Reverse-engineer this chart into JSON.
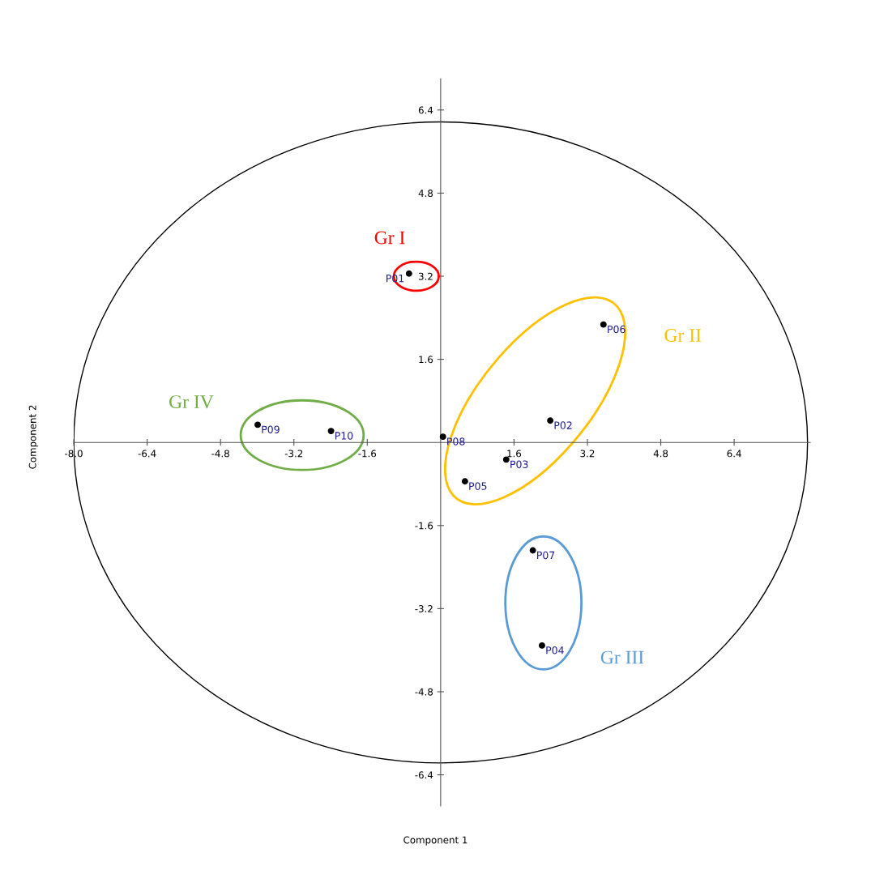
{
  "chart_data": {
    "type": "scatter",
    "xlabel": "Component 1",
    "ylabel": "Component 2",
    "xlim": [
      -8.0,
      8.06
    ],
    "ylim": [
      -7.0,
      7.0
    ],
    "xticks": [
      {
        "value": -8.0,
        "label": "-8.0"
      },
      -6.4,
      -4.8,
      -3.2,
      -1.6,
      1.6,
      3.2,
      4.8,
      6.4
    ],
    "yticks": [
      -6.4,
      -4.8,
      -3.2,
      -1.6,
      1.6,
      3.2,
      4.8,
      6.4
    ],
    "marker": "circle",
    "series": [
      {
        "color": "#000000",
        "x": [
          -0.69,
          2.39,
          1.43,
          2.21,
          0.53,
          3.55,
          2.01,
          0.05,
          -3.99,
          -2.39
        ],
        "values": [
          3.25,
          0.42,
          -0.33,
          -3.91,
          -0.75,
          2.27,
          -2.08,
          0.11,
          0.34,
          0.22
        ]
      }
    ],
    "annotations": [
      {
        "text": "P01",
        "x": -0.69,
        "y": 3.25
      },
      {
        "text": "P02",
        "x": 2.39,
        "y": 0.42
      },
      {
        "text": "P03",
        "x": 1.43,
        "y": -0.33
      },
      {
        "text": "P04",
        "x": 2.21,
        "y": -3.91
      },
      {
        "text": "P05",
        "x": 0.53,
        "y": -0.75
      },
      {
        "text": "P06",
        "x": 3.55,
        "y": 2.27
      },
      {
        "text": "P07",
        "x": 2.01,
        "y": -2.08
      },
      {
        "text": "P08",
        "x": 0.05,
        "y": 0.11
      },
      {
        "text": "P09",
        "x": -3.99,
        "y": 0.34
      },
      {
        "text": "P10",
        "x": -2.39,
        "y": 0.22
      },
      "Gr I",
      "Gr II",
      "Gr III",
      "Gr IV"
    ]
  }
}
